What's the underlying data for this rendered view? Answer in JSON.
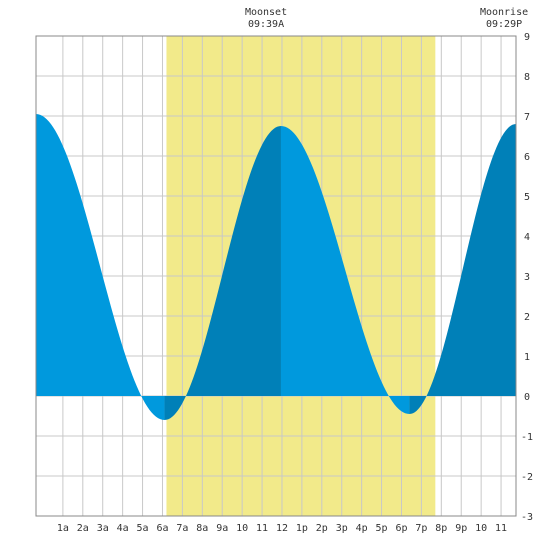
{
  "chart_data": {
    "type": "area",
    "title": "",
    "xlabel": "",
    "ylabel": "",
    "x_range_hours": [
      -0.35,
      23.75
    ],
    "ylim": [
      -3,
      9
    ],
    "y_ticks": [
      -3,
      -2,
      -1,
      0,
      1,
      2,
      3,
      4,
      5,
      6,
      7,
      8,
      9
    ],
    "x_tick_labels": [
      "1a",
      "2a",
      "3a",
      "4a",
      "5a",
      "6a",
      "7a",
      "8a",
      "9a",
      "10",
      "11",
      "12",
      "1p",
      "2p",
      "3p",
      "4p",
      "5p",
      "6p",
      "7p",
      "8p",
      "9p",
      "10",
      "11"
    ],
    "daylight_hours": [
      6.2,
      19.7
    ],
    "daylight_color": "#f2ea8a",
    "tide_light_color": "#0099dd",
    "tide_dark_color": "#0080b8",
    "grid": true,
    "series": [
      {
        "values": [
          [
            -0.35,
            7.05
          ],
          [
            1.2,
            5.5
          ],
          [
            3.0,
            2.8
          ],
          [
            4.5,
            0.55
          ],
          [
            5.45,
            -0.35
          ],
          [
            6.1,
            -0.6
          ],
          [
            6.8,
            -0.35
          ],
          [
            8.0,
            1.2
          ],
          [
            9.5,
            3.9
          ],
          [
            11.0,
            6.1
          ],
          [
            11.95,
            6.75
          ],
          [
            12.9,
            6.4
          ],
          [
            14.0,
            5.0
          ],
          [
            15.5,
            2.6
          ],
          [
            17.0,
            0.4
          ],
          [
            17.7,
            -0.3
          ],
          [
            18.4,
            -0.45
          ],
          [
            19.2,
            -0.2
          ],
          [
            20.5,
            1.5
          ],
          [
            22.0,
            4.3
          ],
          [
            23.75,
            6.8
          ]
        ]
      }
    ],
    "extremes": [
      {
        "hour": -0.35,
        "level": 7.05,
        "type": "high"
      },
      {
        "hour": 6.1,
        "level": -0.6,
        "type": "low"
      },
      {
        "hour": 11.95,
        "level": 6.75,
        "type": "high"
      },
      {
        "hour": 18.4,
        "level": -0.45,
        "type": "low"
      },
      {
        "hour": 23.75,
        "level": 6.8,
        "type": "high"
      }
    ],
    "annotations": [
      {
        "hour": 11.2,
        "title": "Moonset",
        "time": "09:39A"
      },
      {
        "hour": 23.15,
        "title": "Moonrise",
        "time": "09:29P"
      }
    ]
  }
}
